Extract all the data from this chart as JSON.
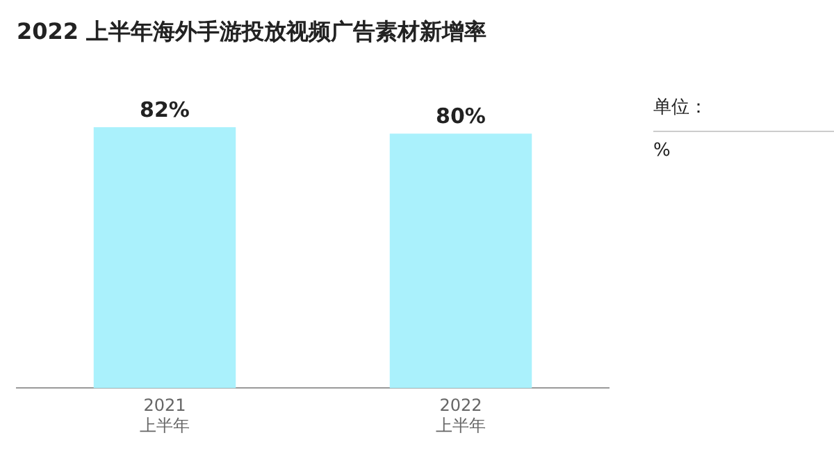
{
  "chart_data": {
    "type": "bar",
    "title": "2022 上半年海外手游投放视频广告素材新增率",
    "categories": [
      "2021\n上半年",
      "2022\n上半年"
    ],
    "values": [
      82,
      80
    ],
    "color": "#aaf1fc",
    "value_labels": [
      "82%",
      "80%"
    ],
    "annotations": [
      "单位：",
      "%"
    ],
    "grid": false,
    "legend": false
  }
}
